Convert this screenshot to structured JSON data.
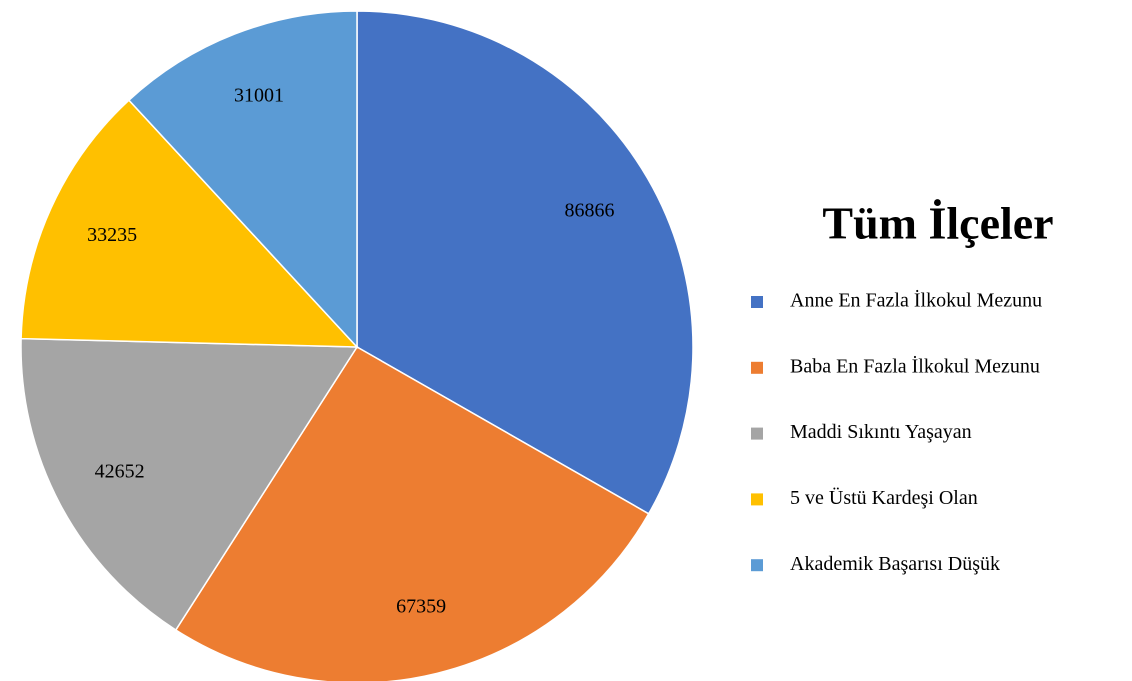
{
  "chart_data": {
    "type": "pie",
    "title": "Tüm İlçeler",
    "categories": [
      "Anne En Fazla İlkokul Mezunu",
      "Baba En Fazla İlkokul Mezunu",
      "Maddi Sıkıntı Yaşayan",
      "5 ve Üstü Kardeşi Olan",
      "Akademik Başarısı Düşük"
    ],
    "values": [
      86866,
      67359,
      42652,
      33235,
      31001
    ],
    "colors": [
      "#4472c4",
      "#ed7d31",
      "#a5a5a5",
      "#ffc000",
      "#5b9bd5"
    ],
    "legend": "right"
  }
}
